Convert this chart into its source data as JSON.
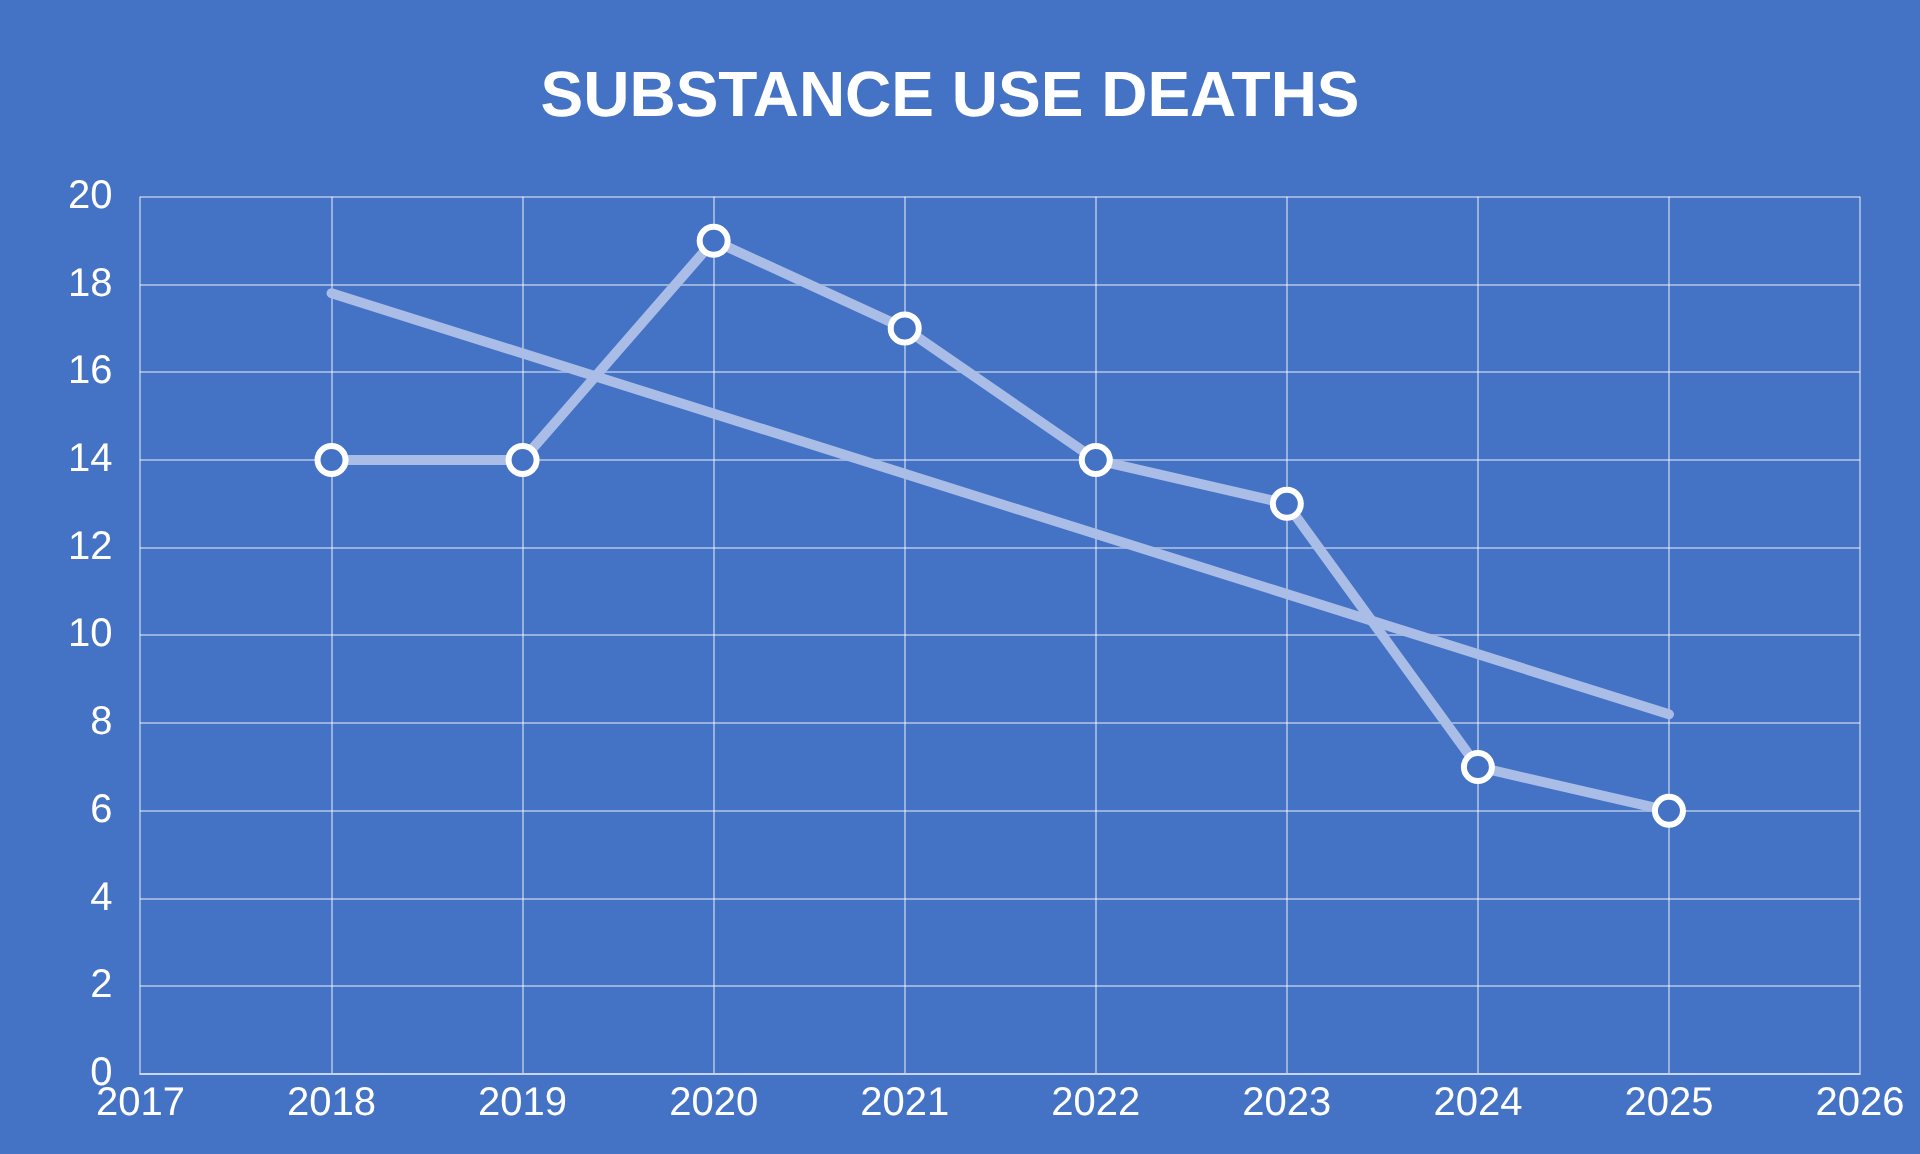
{
  "chart_data": {
    "type": "line",
    "title": "SUBSTANCE USE DEATHS",
    "x": [
      2018,
      2019,
      2020,
      2021,
      2022,
      2023,
      2024,
      2025
    ],
    "series": [
      {
        "color": "#a9bde6",
        "values": [
          14,
          14,
          19,
          17,
          14,
          13,
          7,
          6
        ],
        "marker": "circle"
      },
      {
        "color": "#a9bde6",
        "x": [
          2018,
          2025
        ],
        "values": [
          17.8,
          8.2
        ],
        "marker": "none"
      }
    ],
    "xlim": [
      2017,
      2026
    ],
    "xticks": [
      2017,
      2018,
      2019,
      2020,
      2021,
      2022,
      2023,
      2024,
      2025,
      2026
    ],
    "ylim": [
      0,
      20
    ],
    "yticks": [
      0,
      2,
      4,
      6,
      8,
      10,
      12,
      14,
      16,
      18,
      20
    ],
    "grid": true,
    "legend": false,
    "line_style": "solid"
  }
}
